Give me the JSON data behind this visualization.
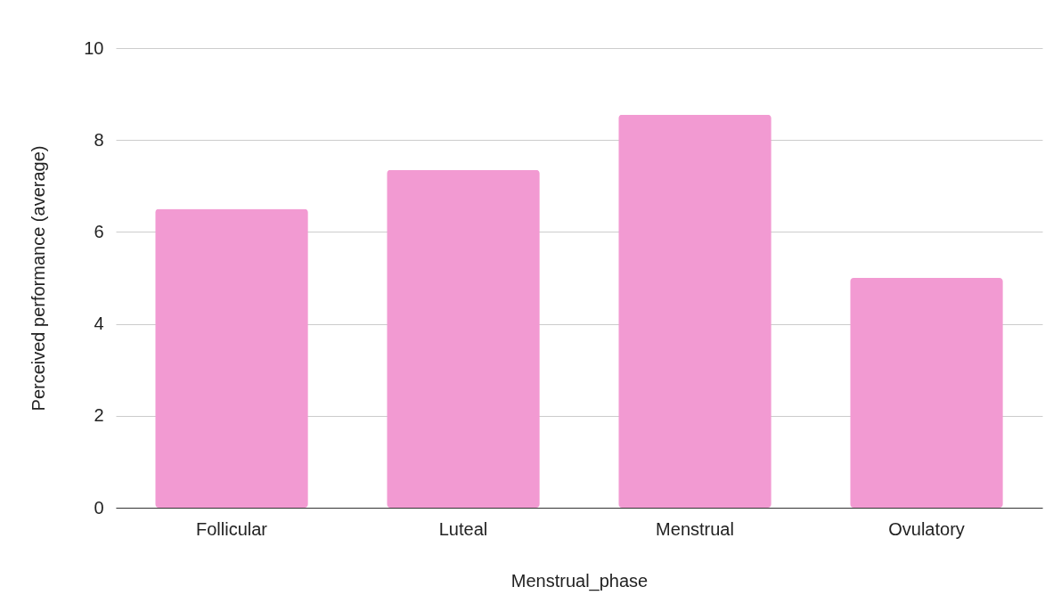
{
  "chart_data": {
    "type": "bar",
    "xlabel": "Menstrual_phase",
    "ylabel": "Perceived performance (average)",
    "categories": [
      "Follicular",
      "Luteal",
      "Menstrual",
      "Ovulatory"
    ],
    "values": [
      6.5,
      7.35,
      8.55,
      5.0
    ],
    "color": "#f29ad2",
    "ylim": [
      0,
      10
    ],
    "yticks": [
      0,
      2,
      4,
      6,
      8,
      10
    ],
    "grid": "y"
  }
}
